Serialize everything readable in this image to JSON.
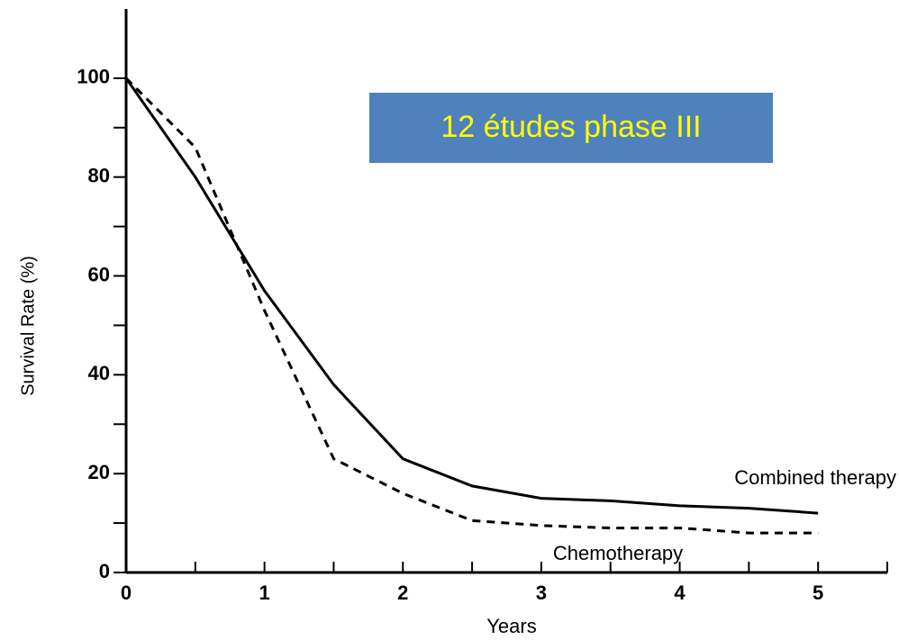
{
  "chart_data": {
    "type": "line",
    "x_label": "Years",
    "y_label": "Survival Rate (%)",
    "annotation": "12 études phase III",
    "x": [
      0,
      0.5,
      1,
      1.5,
      2,
      2.5,
      3,
      3.5,
      4,
      4.5,
      5
    ],
    "series": [
      {
        "name": "Combined therapy",
        "color": "#000000",
        "dash": false,
        "values": [
          100,
          80,
          57,
          38,
          23,
          17.5,
          15,
          14.5,
          13.5,
          13,
          12
        ]
      },
      {
        "name": "Chemotherapy",
        "color": "#000000",
        "dash": true,
        "values": [
          100,
          86,
          53,
          23,
          16,
          10.5,
          9.5,
          9,
          9,
          8,
          8
        ]
      }
    ],
    "xlim": [
      0,
      5.5
    ],
    "ylim": [
      0,
      114
    ],
    "xticks": [
      0,
      1,
      2,
      3,
      4,
      5
    ],
    "xminorticks": [
      0.5,
      1.5,
      2.5,
      3.5,
      4.5,
      5.5
    ],
    "yticks": [
      0,
      20,
      40,
      60,
      80,
      100
    ],
    "yminorticks": [
      10,
      30,
      50,
      70,
      90
    ],
    "grid": false
  }
}
